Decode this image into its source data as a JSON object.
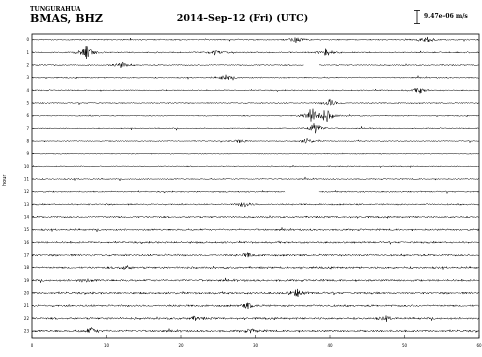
{
  "header": {
    "volcano": "TUNGURAHUA",
    "station": "BMAS, BHZ",
    "date": "2014–Sep–12 (Fri) (UTC)",
    "scale": "9.47e–06 m/s"
  },
  "chart_data": {
    "type": "line",
    "plot_kind": "helicorder",
    "title": "2014–Sep–12 (Fri) (UTC)",
    "xlabel": "",
    "ylabel": "hour",
    "xlim": [
      0,
      60
    ],
    "x_ticks": [
      "0",
      "10",
      "20",
      "30",
      "40",
      "50",
      "60"
    ],
    "hours": [
      "0",
      "1",
      "2",
      "3",
      "4",
      "5",
      "6",
      "7",
      "8",
      "9",
      "10",
      "11",
      "12",
      "13",
      "14",
      "15",
      "16",
      "17",
      "18",
      "19",
      "20",
      "21",
      "22",
      "23"
    ],
    "amplitude_scale": "9.47e–06 m/s",
    "noise_level": [
      0.55,
      0.55,
      0.55,
      0.55,
      0.55,
      0.55,
      0.5,
      0.5,
      0.45,
      0.45,
      0.5,
      0.55,
      0.6,
      0.7,
      0.8,
      0.8,
      0.85,
      0.9,
      0.9,
      0.9,
      0.9,
      0.9,
      0.9,
      0.9
    ],
    "gaps": [
      {
        "hour": 2,
        "minute_start": 36.5,
        "minute_end": 38.5
      },
      {
        "hour": 12,
        "minute_start": 34,
        "minute_end": 38.5
      }
    ],
    "events": [
      {
        "hour": 0,
        "minute": 35.5,
        "amplitude": 3
      },
      {
        "hour": 0,
        "minute": 53,
        "amplitude": 3
      },
      {
        "hour": 1,
        "minute": 7.3,
        "amplitude": 7
      },
      {
        "hour": 1,
        "minute": 24.5,
        "amplitude": 3
      },
      {
        "hour": 1,
        "minute": 39.5,
        "amplitude": 4
      },
      {
        "hour": 2,
        "minute": 12,
        "amplitude": 3
      },
      {
        "hour": 3,
        "minute": 26,
        "amplitude": 3
      },
      {
        "hour": 4,
        "minute": 52,
        "amplitude": 3
      },
      {
        "hour": 5,
        "minute": 40,
        "amplitude": 4
      },
      {
        "hour": 6,
        "minute": 37.5,
        "amplitude": 9
      },
      {
        "hour": 6,
        "minute": 39.5,
        "amplitude": 7
      },
      {
        "hour": 7,
        "minute": 38,
        "amplitude": 6
      },
      {
        "hour": 8,
        "minute": 28,
        "amplitude": 2
      },
      {
        "hour": 8,
        "minute": 37,
        "amplitude": 3
      },
      {
        "hour": 13,
        "minute": 28.5,
        "amplitude": 3
      },
      {
        "hour": 17,
        "minute": 29,
        "amplitude": 2
      },
      {
        "hour": 18,
        "minute": 12.5,
        "amplitude": 2
      },
      {
        "hour": 19,
        "minute": 7,
        "amplitude": 2
      },
      {
        "hour": 20,
        "minute": 35.5,
        "amplitude": 4
      },
      {
        "hour": 21,
        "minute": 29,
        "amplitude": 3
      },
      {
        "hour": 22,
        "minute": 22,
        "amplitude": 2
      },
      {
        "hour": 22,
        "minute": 47.5,
        "amplitude": 2
      },
      {
        "hour": 23,
        "minute": 8,
        "amplitude": 3
      },
      {
        "hour": 23,
        "minute": 29.5,
        "amplitude": 2
      }
    ],
    "line_color": "#000000",
    "grid": false,
    "legend": "none"
  }
}
